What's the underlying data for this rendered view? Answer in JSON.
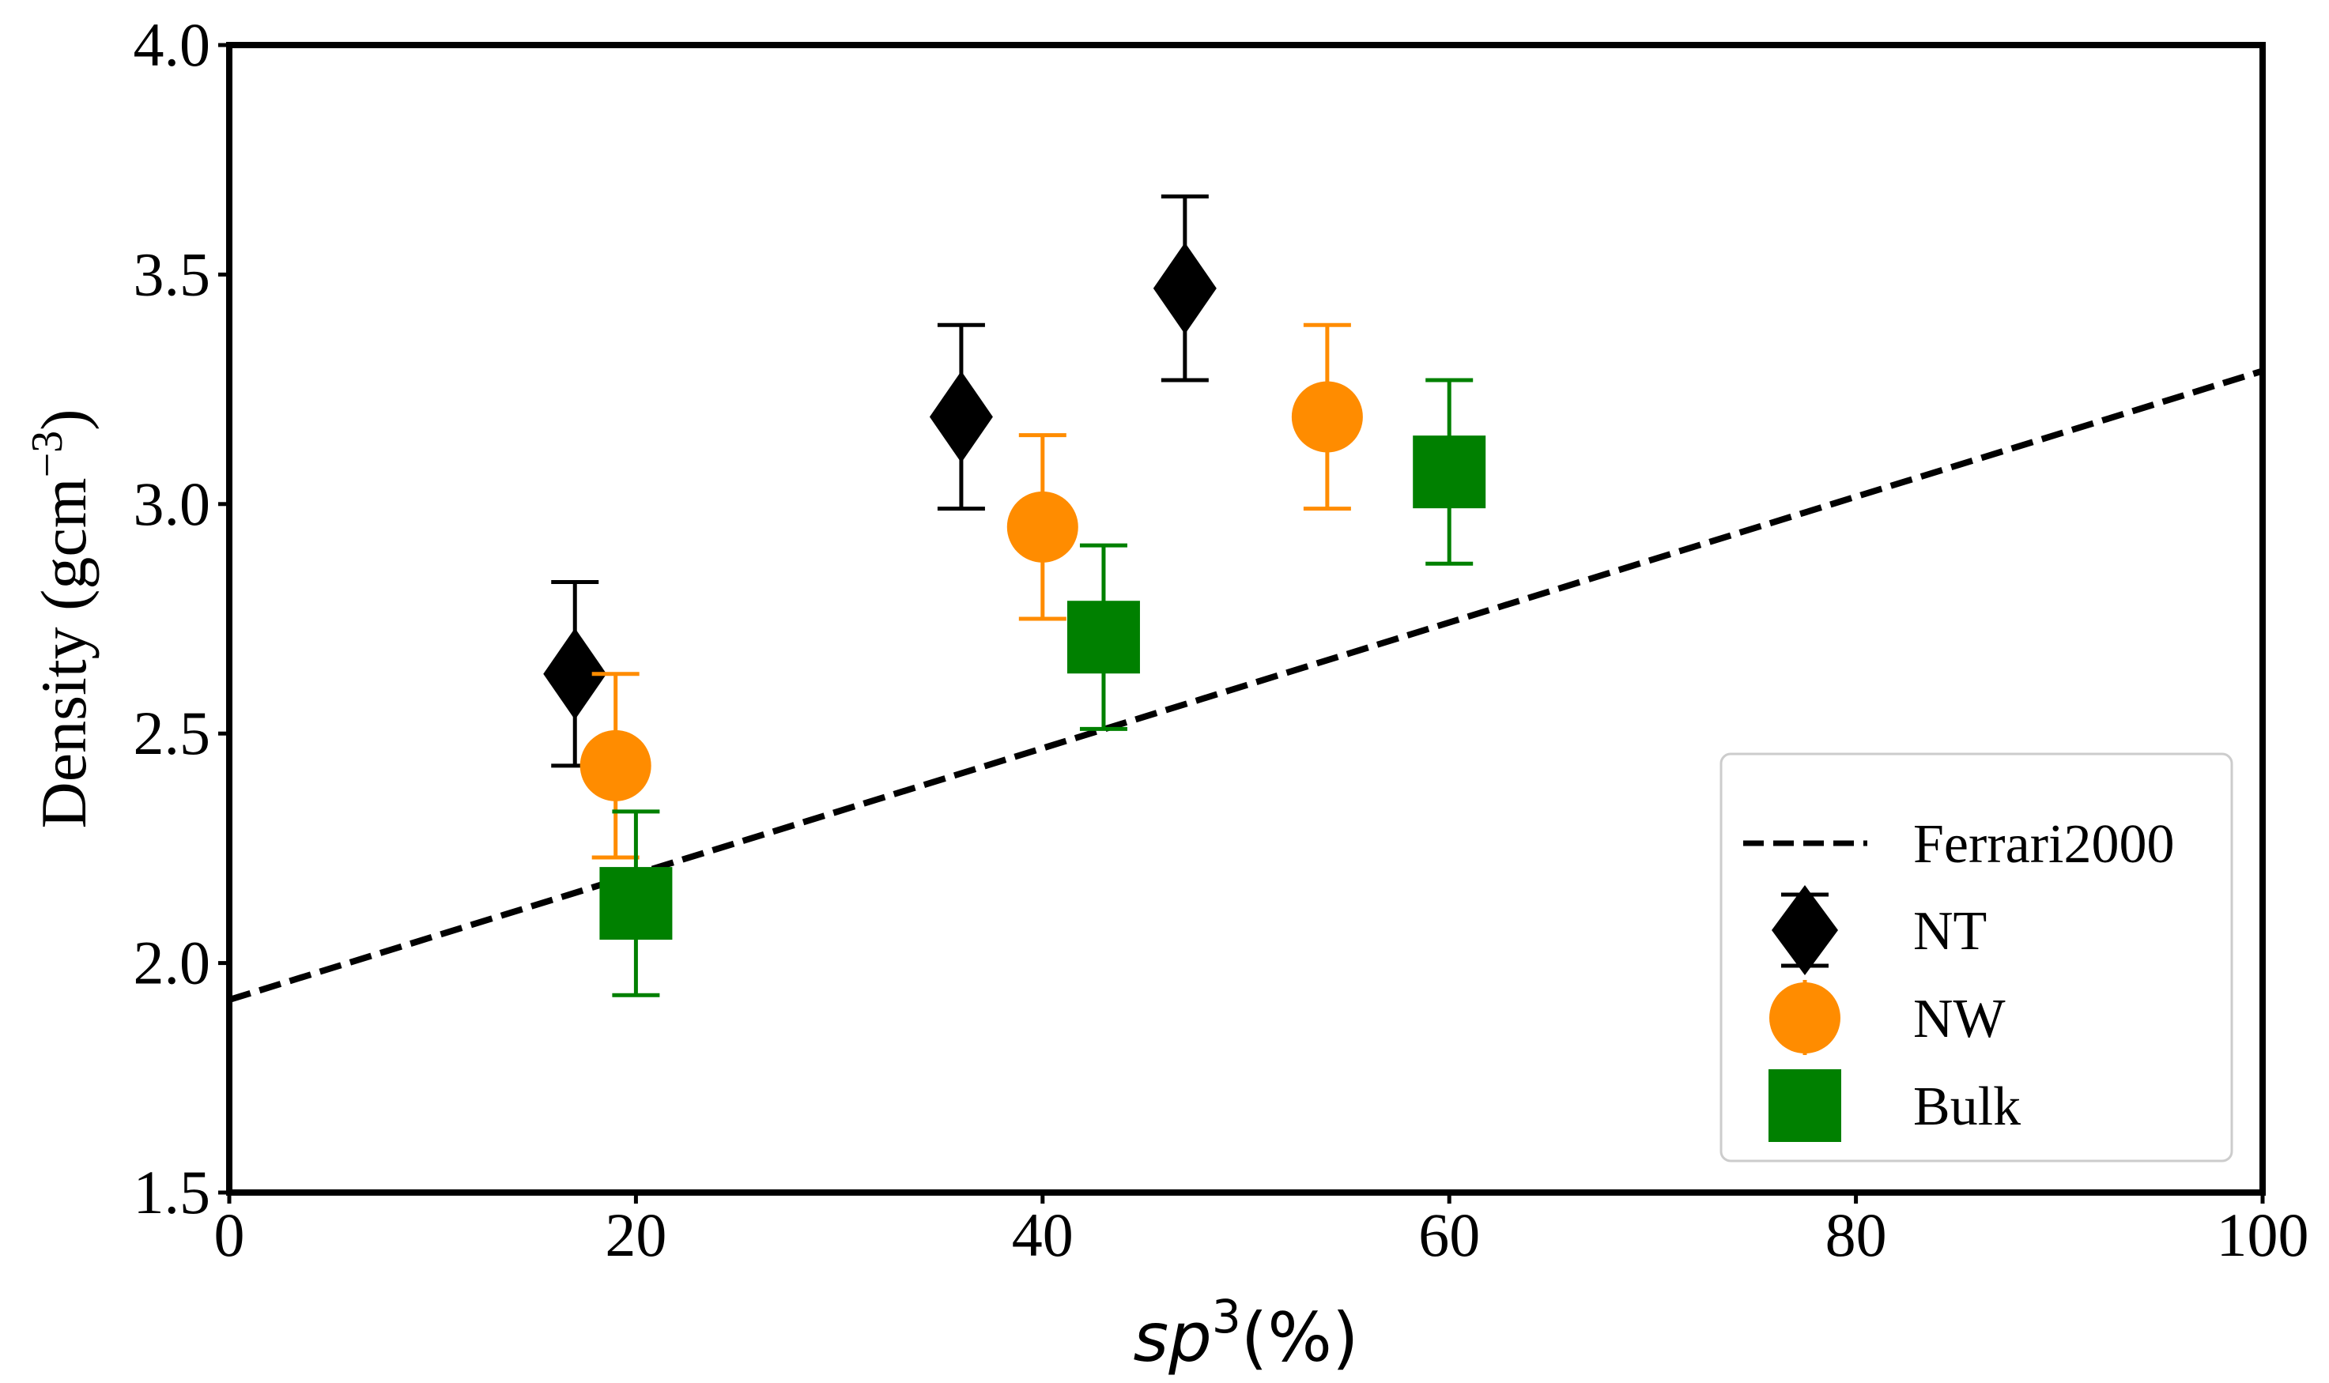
{
  "chart_data": {
    "type": "scatter",
    "title": "",
    "xlabel_italic": "sp",
    "xlabel_sup": "3",
    "xlabel_rest": "(%)",
    "ylabel": "Density (gcm",
    "ylabel_sup": "−3",
    "ylabel_close": ")",
    "xlim": [
      0,
      100
    ],
    "ylim": [
      1.5,
      4.0
    ],
    "xticks": [
      0,
      20,
      40,
      60,
      80,
      100
    ],
    "xtick_labels": [
      "0",
      "20",
      "40",
      "60",
      "80",
      "100"
    ],
    "yticks": [
      1.5,
      2.0,
      2.5,
      3.0,
      3.5,
      4.0
    ],
    "ytick_labels": [
      "1.5",
      "2.0",
      "2.5",
      "3.0",
      "3.5",
      "4.0"
    ],
    "grid": false,
    "legend_position": "bottom-right",
    "line": {
      "name": "Ferrari2000",
      "style": "dashed",
      "color": "#000000",
      "x": [
        0,
        100
      ],
      "y": [
        1.92,
        3.29
      ]
    },
    "series": [
      {
        "name": "NT",
        "marker": "diamond",
        "color": "#000000",
        "points": [
          {
            "x": 17,
            "y": 2.63,
            "err": 0.2
          },
          {
            "x": 36,
            "y": 3.19,
            "err": 0.2
          },
          {
            "x": 47,
            "y": 3.47,
            "err": 0.2
          }
        ]
      },
      {
        "name": "NW",
        "marker": "circle",
        "color": "#ff8c00",
        "points": [
          {
            "x": 19,
            "y": 2.43,
            "err": 0.2
          },
          {
            "x": 40,
            "y": 2.95,
            "err": 0.2
          },
          {
            "x": 54,
            "y": 3.19,
            "err": 0.2
          }
        ]
      },
      {
        "name": "Bulk",
        "marker": "square",
        "color": "#008000",
        "points": [
          {
            "x": 20,
            "y": 2.13,
            "err": 0.2
          },
          {
            "x": 43,
            "y": 2.71,
            "err": 0.2
          },
          {
            "x": 60,
            "y": 3.07,
            "err": 0.2
          }
        ]
      }
    ]
  }
}
